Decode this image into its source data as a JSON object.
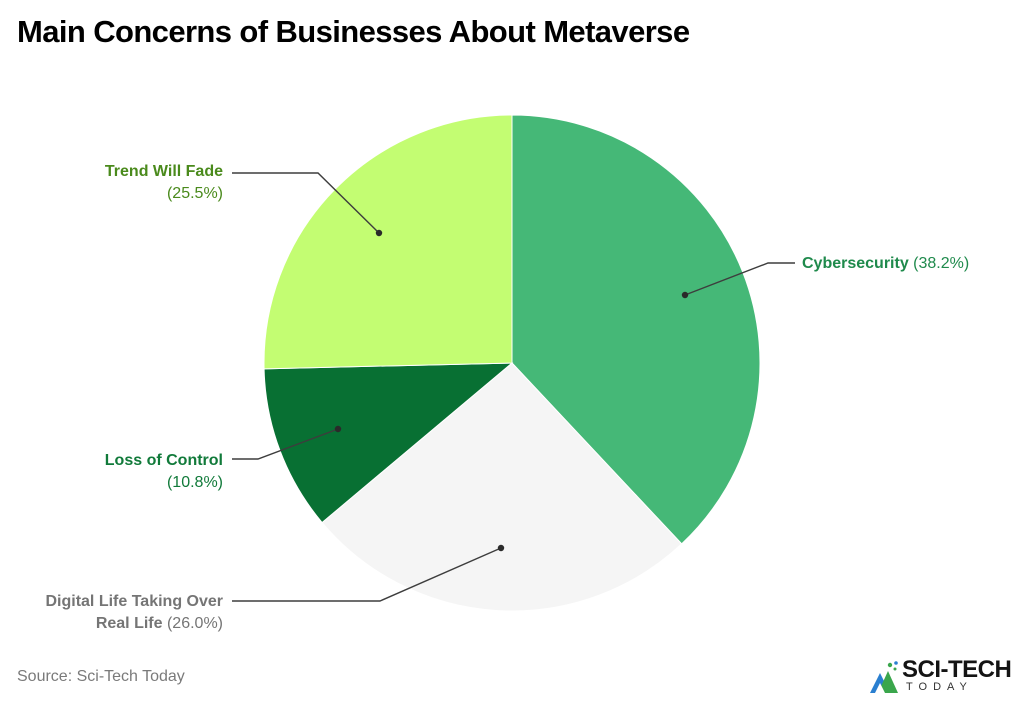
{
  "title": "Main Concerns of Businesses About Metaverse",
  "source": "Source: Sci-Tech Today",
  "logo": {
    "main": "SCI-TECH",
    "sub": "TODAY",
    "colors": {
      "green": "#3aa64c",
      "blue": "#2a7fd0",
      "dark": "#141414"
    }
  },
  "labels": {
    "cybersecurity": {
      "name": "Cybersecurity",
      "pct": "(38.2%)",
      "color": "#1f8a4c"
    },
    "digital": {
      "name_line1": "Digital Life Taking Over",
      "name_line2": "Real Life",
      "pct": "(26.0%)",
      "color": "#757575"
    },
    "loss": {
      "name": "Loss of Control",
      "pct": "(10.8%)",
      "color": "#117a3a"
    },
    "trend": {
      "name": "Trend Will Fade",
      "pct": "(25.5%)",
      "color": "#4a8a1c"
    }
  },
  "chart_data": {
    "type": "pie",
    "title": "Main Concerns of Businesses About Metaverse",
    "categories": [
      "Cybersecurity",
      "Digital Life Taking Over Real Life",
      "Loss of Control",
      "Trend Will Fade"
    ],
    "values": [
      38.2,
      26.0,
      10.8,
      25.5
    ],
    "colors": [
      "#45b877",
      "#f5f5f5",
      "#087033",
      "#c3fd72"
    ],
    "unit": "%",
    "start_angle": "12 o'clock",
    "direction": "clockwise",
    "legend": "callout labels",
    "source": "Sci-Tech Today"
  }
}
